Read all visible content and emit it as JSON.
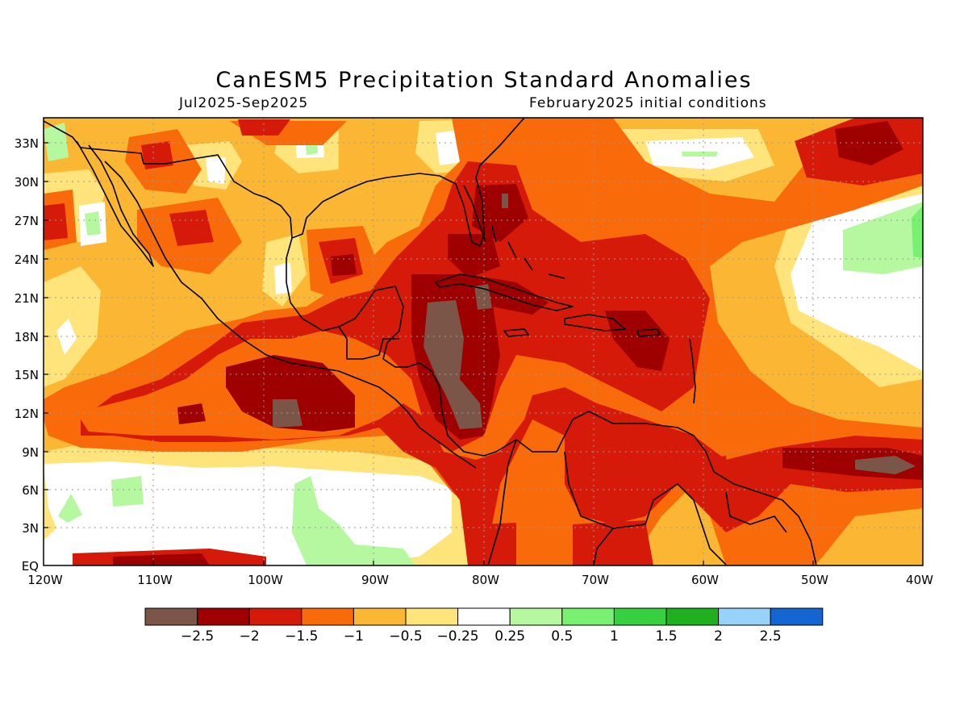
{
  "title": "CanESM5 Precipitation Standard Anomalies",
  "subtitle_left": "Jul2025-Sep2025",
  "subtitle_right": "February2025 initial conditions",
  "lat_labels": [
    "33N",
    "30N",
    "27N",
    "24N",
    "21N",
    "18N",
    "15N",
    "12N",
    "9N",
    "6N",
    "3N",
    "EQ"
  ],
  "lon_labels": [
    "120W",
    "110W",
    "100W",
    "90W",
    "80W",
    "70W",
    "60W",
    "50W",
    "40W"
  ],
  "colorbar": {
    "colors": [
      "#7a5548",
      "#9e0000",
      "#d61a0a",
      "#f86a0a",
      "#fbb634",
      "#fee47a",
      "#ffffff",
      "#b5f8a0",
      "#78f070",
      "#37d041",
      "#1eb01e",
      "#96d2fa",
      "#1464d2"
    ],
    "labels": [
      "-2.5",
      "-2",
      "-1.5",
      "-1",
      "-0.5",
      "-0.25",
      "0.25",
      "0.5",
      "1",
      "1.5",
      "2",
      "2.5"
    ]
  },
  "colors": {
    "background_anomaly": "#fbb634",
    "coastline": "#000000",
    "grid": "#999999"
  }
}
